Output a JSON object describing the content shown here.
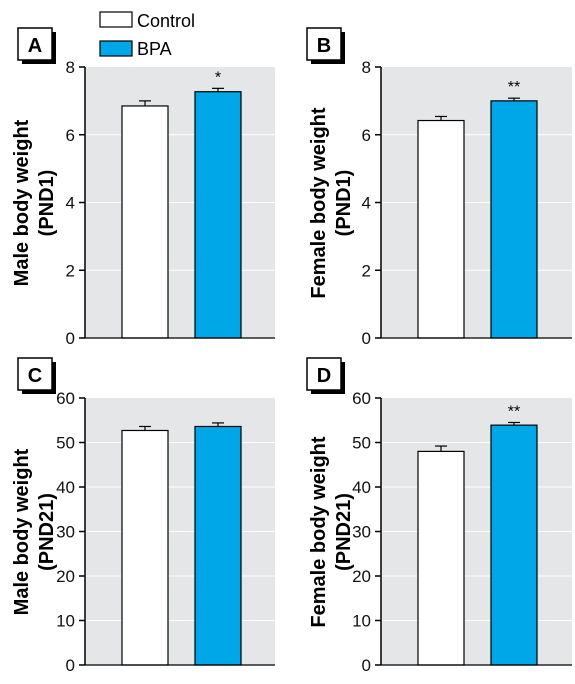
{
  "legend": [
    {
      "label": "Control",
      "color": "#ffffff"
    },
    {
      "label": "BPA",
      "color": "#00a7e8"
    }
  ],
  "colors": {
    "plot_background": "#e5e6e8",
    "control": "#ffffff",
    "bpa": "#00a7e8",
    "outline": "#000000"
  },
  "chart_data": [
    {
      "type": "bar",
      "panel": "A",
      "ylabel": [
        "Male body weight",
        "(PND1)"
      ],
      "ylim": [
        0,
        8
      ],
      "yticks": [
        0,
        2,
        4,
        6,
        8
      ],
      "categories": [
        "Control",
        "BPA"
      ],
      "values": [
        6.85,
        7.27
      ],
      "errors": [
        0.15,
        0.1
      ],
      "significance": [
        "",
        "*"
      ]
    },
    {
      "type": "bar",
      "panel": "B",
      "ylabel": [
        "Female body weight",
        "(PND1)"
      ],
      "ylim": [
        0,
        8
      ],
      "yticks": [
        0,
        2,
        4,
        6,
        8
      ],
      "categories": [
        "Control",
        "BPA"
      ],
      "values": [
        6.42,
        7.0
      ],
      "errors": [
        0.12,
        0.08
      ],
      "significance": [
        "",
        "**"
      ]
    },
    {
      "type": "bar",
      "panel": "C",
      "ylabel": [
        "Male body weight",
        "(PND21)"
      ],
      "ylim": [
        0,
        60
      ],
      "yticks": [
        0,
        10,
        20,
        30,
        40,
        50,
        60
      ],
      "categories": [
        "Control",
        "BPA"
      ],
      "values": [
        52.7,
        53.6
      ],
      "errors": [
        0.9,
        0.8
      ],
      "significance": [
        "",
        ""
      ]
    },
    {
      "type": "bar",
      "panel": "D",
      "ylabel": [
        "Female body weight",
        "(PND21)"
      ],
      "ylim": [
        0,
        60
      ],
      "yticks": [
        0,
        10,
        20,
        30,
        40,
        50,
        60
      ],
      "categories": [
        "Control",
        "BPA"
      ],
      "values": [
        48.0,
        53.9
      ],
      "errors": [
        1.2,
        0.6
      ],
      "significance": [
        "",
        "**"
      ]
    }
  ]
}
